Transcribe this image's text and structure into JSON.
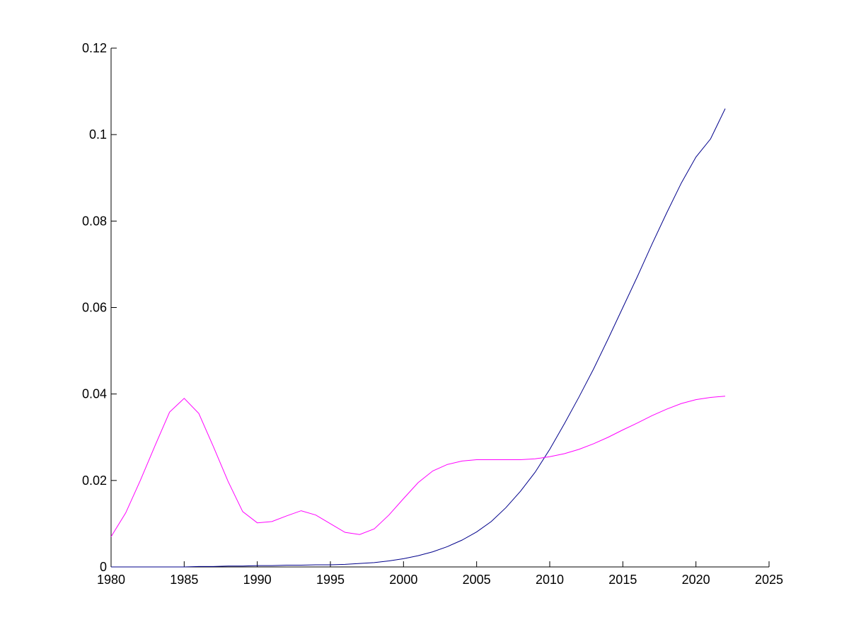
{
  "chart_data": {
    "type": "line",
    "title": "",
    "xlabel": "",
    "ylabel": "",
    "xlim": [
      1980,
      2025
    ],
    "ylim": [
      0,
      0.12
    ],
    "grid": false,
    "legend": "none",
    "x_ticks": [
      1980,
      1985,
      1990,
      1995,
      2000,
      2005,
      2010,
      2015,
      2020,
      2025
    ],
    "x_tick_labels": [
      "1980",
      "1985",
      "1990",
      "1995",
      "2000",
      "2005",
      "2010",
      "2015",
      "2020",
      "2025"
    ],
    "y_ticks": [
      0,
      0.02,
      0.04,
      0.06,
      0.08,
      0.1,
      0.12
    ],
    "y_tick_labels": [
      "0",
      "0.02",
      "0.04",
      "0.06",
      "0.08",
      "0.1",
      "0.12"
    ],
    "series": [
      {
        "color": "#00008b",
        "x": [
          1980,
          1981,
          1982,
          1983,
          1984,
          1985,
          1986,
          1987,
          1988,
          1989,
          1990,
          1991,
          1992,
          1993,
          1994,
          1995,
          1996,
          1997,
          1998,
          1999,
          2000,
          2001,
          2002,
          2003,
          2004,
          2005,
          2006,
          2007,
          2008,
          2009,
          2010,
          2011,
          2012,
          2013,
          2014,
          2015,
          2016,
          2017,
          2018,
          2019,
          2020,
          2021,
          2022
        ],
        "y": [
          0,
          0,
          0,
          0,
          0,
          0,
          0.0001,
          0.0001,
          0.0002,
          0.0002,
          0.0003,
          0.0003,
          0.0004,
          0.0004,
          0.0005,
          0.0005,
          0.0006,
          0.0008,
          0.001,
          0.0014,
          0.0019,
          0.0026,
          0.0035,
          0.0047,
          0.0062,
          0.0081,
          0.0105,
          0.0137,
          0.0175,
          0.0219,
          0.0272,
          0.0331,
          0.0393,
          0.0458,
          0.0528,
          0.06,
          0.0672,
          0.0747,
          0.0819,
          0.0888,
          0.0948,
          0.099,
          0.106
        ]
      },
      {
        "color": "#ff00ff",
        "x": [
          1980,
          1981,
          1982,
          1983,
          1984,
          1985,
          1986,
          1987,
          1988,
          1989,
          1990,
          1991,
          1992,
          1993,
          1994,
          1995,
          1996,
          1997,
          1998,
          1999,
          2000,
          2001,
          2002,
          2003,
          2004,
          2005,
          2006,
          2007,
          2008,
          2009,
          2010,
          2011,
          2012,
          2013,
          2014,
          2015,
          2016,
          2017,
          2018,
          2019,
          2020,
          2021,
          2022
        ],
        "y": [
          0.007,
          0.0125,
          0.02,
          0.028,
          0.0358,
          0.039,
          0.0355,
          0.0278,
          0.0198,
          0.0128,
          0.0102,
          0.0105,
          0.0118,
          0.013,
          0.012,
          0.01,
          0.008,
          0.0075,
          0.0088,
          0.012,
          0.0158,
          0.0195,
          0.0222,
          0.0237,
          0.0245,
          0.0248,
          0.0248,
          0.0248,
          0.0248,
          0.025,
          0.0255,
          0.0262,
          0.0272,
          0.0285,
          0.03,
          0.0317,
          0.0333,
          0.035,
          0.0365,
          0.0378,
          0.0387,
          0.0392,
          0.0395
        ]
      }
    ]
  }
}
